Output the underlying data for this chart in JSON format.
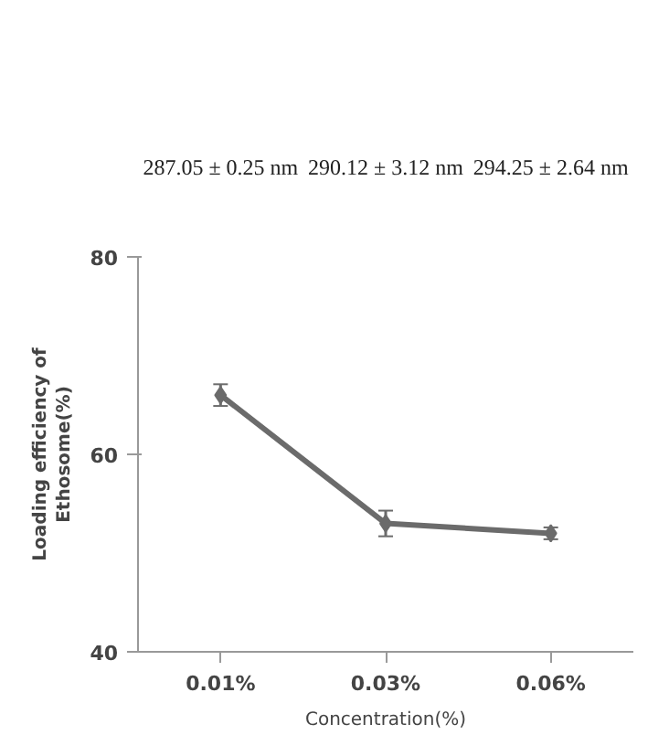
{
  "chart_data": {
    "type": "line",
    "categories": [
      "0.01%",
      "0.03%",
      "0.06%"
    ],
    "series": [
      {
        "color": "#6b6b6b",
        "values": [
          66,
          53,
          52
        ],
        "errors": [
          1.1,
          1.3,
          0.6
        ]
      }
    ],
    "xlabel": "Concentration(%)",
    "ylabel": "Loading efficiency of\nEthosome(%)",
    "ylim": [
      40,
      80
    ],
    "yticks": [
      40,
      60,
      80
    ],
    "grid": false,
    "marker": "diamond",
    "line_style": "solid",
    "annotations": [
      "287.05 ± 0.25 nm",
      "290.12 ± 3.12 nm",
      "294.25 ± 2.64 nm"
    ]
  }
}
